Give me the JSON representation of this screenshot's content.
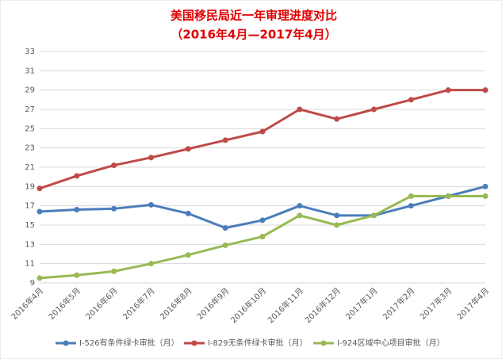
{
  "chart_data": {
    "type": "line",
    "title": "美国移民局近一年审理进度对比",
    "subtitle": "（2016年4月—2017年4月）",
    "categories": [
      "2016年4月",
      "2016年5月",
      "2016年6月",
      "2016年7月",
      "2016年8月",
      "2016年9月",
      "2016年10月",
      "2016年11月",
      "2016年12月",
      "2017年1月",
      "2017年2月",
      "2017年3月",
      "2017年4月"
    ],
    "series": [
      {
        "name": "I-526有条件绿卡审批（月）",
        "color": "#4a7ebb",
        "values": [
          16.4,
          16.6,
          16.7,
          17.1,
          16.2,
          14.7,
          15.5,
          17,
          16,
          16,
          17,
          18,
          19
        ]
      },
      {
        "name": "I-829无条件绿卡审批（月）",
        "color": "#be4b48",
        "values": [
          18.8,
          20.1,
          21.2,
          22,
          22.9,
          23.8,
          24.7,
          27,
          26,
          27,
          28,
          29,
          29
        ]
      },
      {
        "name": "I-924区域中心项目审批（月）",
        "color": "#98b954",
        "values": [
          9.5,
          9.8,
          10.2,
          11,
          11.9,
          12.9,
          13.8,
          16,
          15,
          16,
          18,
          18,
          18
        ]
      }
    ],
    "ylim": [
      9,
      33
    ],
    "yticks": [
      9,
      11,
      13,
      15,
      17,
      19,
      21,
      23,
      25,
      27,
      29,
      31,
      33
    ],
    "grid": true,
    "legend": "bottom"
  }
}
